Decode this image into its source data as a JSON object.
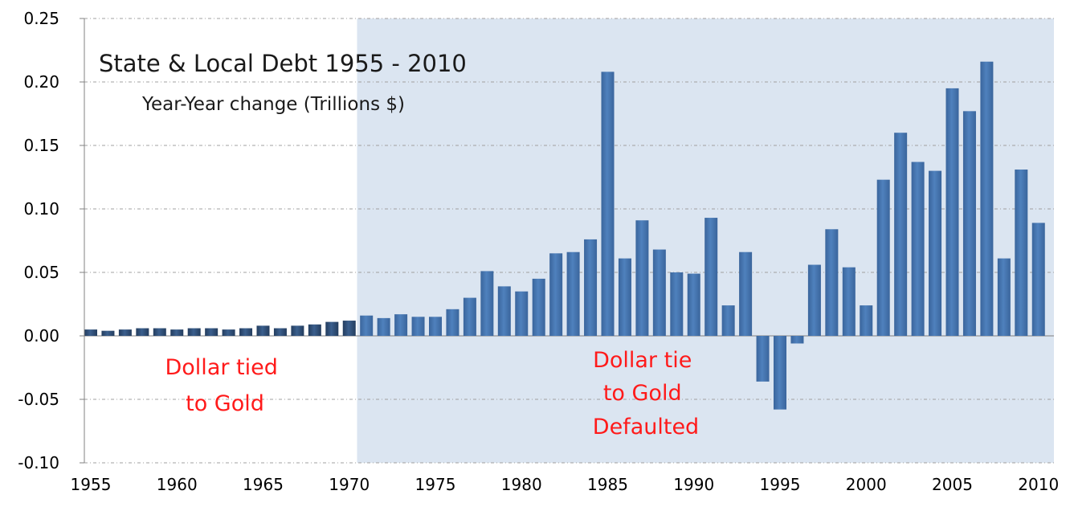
{
  "chart_data": {
    "type": "bar",
    "title": "State & Local Debt 1955 - 2010",
    "subtitle": "Year-Year change (Trillions $)",
    "xlabel": "",
    "ylabel": "",
    "ylim": [
      -0.1,
      0.25
    ],
    "y_ticks": [
      "0.25",
      "0.20",
      "0.15",
      "0.10",
      "0.05",
      "0.00",
      "-0.05",
      "-0.10"
    ],
    "y_tick_values": [
      0.25,
      0.2,
      0.15,
      0.1,
      0.05,
      0.0,
      -0.05,
      -0.1
    ],
    "x_ticks": [
      "1955",
      "1960",
      "1965",
      "1970",
      "1975",
      "1980",
      "1985",
      "1990",
      "1995",
      "2000",
      "2005",
      "2010"
    ],
    "grid": "horizontal dashed",
    "shaded_region": {
      "from_year": 1971,
      "to_year": 2010,
      "color": "#dbe5f1"
    },
    "bar_color": "#4f81bd",
    "dark_bar_color": "#2f4d73",
    "annotations": [
      {
        "lines": [
          "Dollar tied",
          "to Gold"
        ],
        "color": "#ff0000"
      },
      {
        "lines": [
          "Dollar tie",
          "to Gold",
          "Defaulted"
        ],
        "color": "#ff0000"
      }
    ],
    "years": [
      1955,
      1956,
      1957,
      1958,
      1959,
      1960,
      1961,
      1962,
      1963,
      1964,
      1965,
      1966,
      1967,
      1968,
      1969,
      1970,
      1971,
      1972,
      1973,
      1974,
      1975,
      1976,
      1977,
      1978,
      1979,
      1980,
      1981,
      1982,
      1983,
      1984,
      1985,
      1986,
      1987,
      1988,
      1989,
      1990,
      1991,
      1992,
      1993,
      1994,
      1995,
      1996,
      1997,
      1998,
      1999,
      2000,
      2001,
      2002,
      2003,
      2004,
      2005,
      2006,
      2007,
      2008,
      2009,
      2010
    ],
    "values": [
      0.005,
      0.004,
      0.005,
      0.006,
      0.006,
      0.005,
      0.006,
      0.006,
      0.005,
      0.006,
      0.008,
      0.006,
      0.008,
      0.009,
      0.011,
      0.012,
      0.016,
      0.014,
      0.017,
      0.015,
      0.015,
      0.021,
      0.03,
      0.051,
      0.039,
      0.035,
      0.045,
      0.065,
      0.066,
      0.076,
      0.208,
      0.061,
      0.091,
      0.068,
      0.05,
      0.049,
      0.093,
      0.024,
      0.066,
      -0.036,
      -0.058,
      -0.006,
      0.056,
      0.084,
      0.054,
      0.024,
      0.123,
      0.16,
      0.137,
      0.13,
      0.195,
      0.177,
      0.216,
      0.061,
      0.131,
      0.089
    ]
  }
}
